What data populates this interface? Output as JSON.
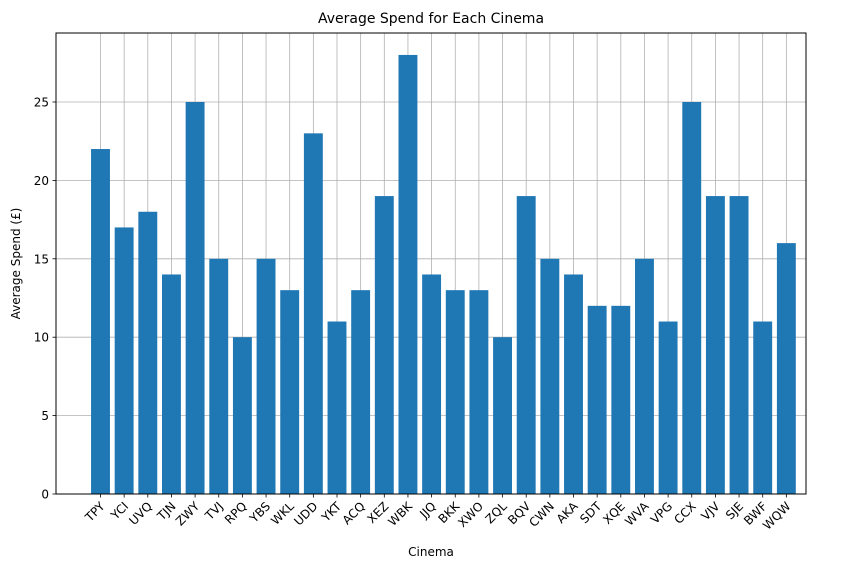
{
  "chart_data": {
    "type": "bar",
    "title": "Average Spend for Each Cinema",
    "xlabel": "Cinema",
    "ylabel": "Average Spend (£)",
    "categories": [
      "TPY",
      "YCI",
      "UVQ",
      "TJN",
      "ZWY",
      "TVJ",
      "RPQ",
      "YBS",
      "WKL",
      "UDD",
      "YKT",
      "ACQ",
      "XEZ",
      "WBK",
      "JJQ",
      "BKK",
      "XWO",
      "ZQL",
      "BQV",
      "CWN",
      "AKA",
      "SDT",
      "XQE",
      "WVA",
      "VPG",
      "CCX",
      "VJV",
      "SJE",
      "BWF",
      "WQW"
    ],
    "values": [
      22,
      17,
      18,
      14,
      25,
      15,
      10,
      15,
      13,
      23,
      11,
      13,
      19,
      28,
      14,
      13,
      13,
      10,
      19,
      15,
      14,
      12,
      12,
      15,
      11,
      25,
      19,
      19,
      11,
      16
    ],
    "ylim": [
      0,
      29.4
    ],
    "yticks": [
      "0",
      "5",
      "10",
      "15",
      "20",
      "25"
    ],
    "grid": true,
    "bar_color": "#1f77b4"
  }
}
